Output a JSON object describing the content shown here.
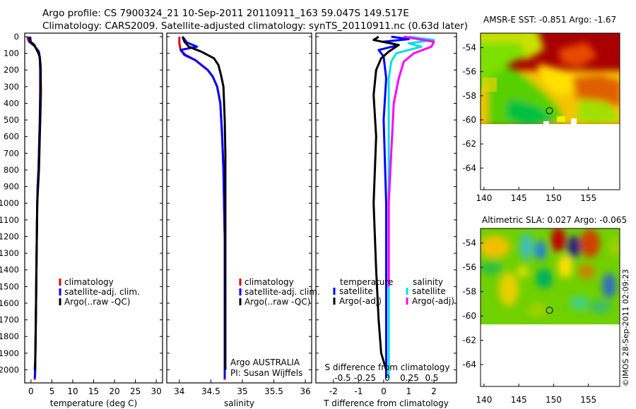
{
  "header": {
    "line1": "Argo profile: CS 7900324_21 10-Sep-2011 20110911_163 59.047S 149.517E",
    "line2": "Climatology: CARS2009. Satellite-adjusted climatology: synTS_20110911.nc (0.63d later)"
  },
  "footer_credit": "©IMOS 28-Sep-2011 02:09:23",
  "colors": {
    "climatology": "#e00000",
    "satellite": "#0000ff",
    "argo": "#000000",
    "sat_sal": "#00e0e0",
    "argo_sal": "#ff00ff"
  },
  "depth_axis": {
    "ticks": [
      0,
      100,
      200,
      300,
      400,
      500,
      600,
      700,
      800,
      900,
      1000,
      1100,
      1200,
      1300,
      1400,
      1500,
      1600,
      1700,
      1800,
      1900,
      2000
    ],
    "range": [
      0,
      2070
    ]
  },
  "chart_data": [
    {
      "type": "line",
      "id": "temperature",
      "xlabel": "temperature (deg C)",
      "xlim": [
        -1.5,
        31.5
      ],
      "xticks": [
        0,
        5,
        10,
        15,
        20,
        25,
        30
      ],
      "xtick_labels": [
        "0",
        "5",
        "10",
        "15",
        "20",
        "25",
        "30"
      ],
      "ylim": [
        2070,
        0
      ],
      "legend": [
        "climatology",
        "satellite-adj. clim.",
        "Argo(..raw -QC)"
      ],
      "series": [
        {
          "name": "climatology",
          "color": "#e00000",
          "x": [
            -0.9,
            -0.5,
            0.8,
            1.8,
            2.1,
            2.3,
            2.4,
            2.3,
            2.2,
            2.0,
            1.9,
            1.8,
            1.6,
            1.5,
            1.4,
            1.3,
            1.2,
            1.1,
            1.0,
            0.9
          ],
          "y": [
            0,
            30,
            55,
            90,
            130,
            200,
            330,
            420,
            500,
            600,
            700,
            800,
            900,
            1000,
            1200,
            1400,
            1600,
            1800,
            2000,
            2060
          ]
        },
        {
          "name": "satellite-adj. clim.",
          "color": "#0000ff",
          "x": [
            -0.6,
            -0.3,
            0.8,
            1.9,
            2.1,
            2.2,
            2.2,
            2.1,
            2.0,
            1.9,
            1.8,
            1.6,
            1.5,
            1.4,
            1.3,
            1.2,
            1.1,
            1.0,
            0.9
          ],
          "y": [
            0,
            30,
            55,
            90,
            130,
            200,
            330,
            500,
            600,
            700,
            800,
            900,
            1000,
            1200,
            1400,
            1600,
            1800,
            2000,
            2050
          ]
        },
        {
          "name": "Argo(..raw -QC)",
          "color": "#000000",
          "x": [
            -0.2,
            -0.1,
            0.8,
            1.6,
            2.1,
            2.3,
            2.3,
            2.2,
            2.1,
            2.0,
            1.9,
            1.7,
            1.5,
            1.4,
            1.3,
            1.2,
            1.1,
            1.0,
            0.9
          ],
          "y": [
            0,
            30,
            50,
            90,
            120,
            180,
            300,
            500,
            600,
            700,
            800,
            900,
            1000,
            1200,
            1400,
            1600,
            1800,
            1950,
            2000
          ]
        }
      ]
    },
    {
      "type": "line",
      "id": "salinity",
      "xlabel": "salinity",
      "xlim": [
        33.8,
        36.1
      ],
      "xticks": [
        34,
        34.5,
        35,
        35.5,
        36
      ],
      "xtick_labels": [
        "34",
        "34.5",
        "35",
        "35.5",
        "36"
      ],
      "ylim": [
        2070,
        0
      ],
      "legend": [
        "climatology",
        "satellite-adj. clim.",
        "Argo(..raw -QC)"
      ],
      "annotation": [
        "Argo AUSTRALIA",
        "PI: Susan Wijffels"
      ],
      "series": [
        {
          "name": "climatology",
          "color": "#e00000",
          "x": [
            34.0,
            34.0,
            34.02,
            34.1,
            34.25,
            34.35,
            34.45,
            34.53,
            34.6,
            34.65,
            34.68,
            34.7,
            34.71,
            34.72,
            34.72,
            34.72,
            34.72
          ],
          "y": [
            0,
            40,
            80,
            110,
            140,
            170,
            200,
            240,
            300,
            400,
            600,
            800,
            1000,
            1200,
            1500,
            1800,
            2060
          ]
        },
        {
          "name": "satellite-adj. clim.",
          "color": "#0000ff",
          "x": [
            34.05,
            34.12,
            34.28,
            34.02,
            34.08,
            34.25,
            34.35,
            34.45,
            34.53,
            34.6,
            34.65,
            34.68,
            34.7,
            34.71,
            34.72,
            34.72,
            34.72
          ],
          "y": [
            0,
            35,
            60,
            80,
            110,
            140,
            170,
            200,
            240,
            300,
            400,
            600,
            800,
            1000,
            1200,
            1600,
            2050
          ]
        },
        {
          "name": "Argo(..raw -QC)",
          "color": "#000000",
          "x": [
            34.05,
            34.08,
            34.15,
            34.35,
            34.55,
            34.62,
            34.66,
            34.7,
            34.72,
            34.73,
            34.73,
            34.73,
            34.73,
            34.73
          ],
          "y": [
            0,
            30,
            60,
            90,
            130,
            170,
            230,
            300,
            500,
            700,
            900,
            1200,
            1600,
            2000
          ]
        }
      ]
    },
    {
      "type": "line",
      "id": "difference",
      "xlabel": "T difference from climatology",
      "xlim": [
        -2.7,
        2.9
      ],
      "xticks": [
        -2,
        -1,
        0,
        1,
        2
      ],
      "xtick_labels": [
        "-2",
        "-1",
        "0",
        "1",
        "2"
      ],
      "secondary_xlabel": "S difference from climatology",
      "secondary_xticks": [
        -0.5,
        -0.25,
        0,
        0.25,
        0.5
      ],
      "secondary_xtick_labels": [
        "-0.5",
        "-0.25",
        "0",
        "0.25",
        "0.5"
      ],
      "ylim": [
        2070,
        0
      ],
      "legend_temperature_title": "temperature",
      "legend_salinity_title": "salinity",
      "legend": [
        "satellite",
        "Argo(-adj)",
        "satellite",
        "Argo(-adj)"
      ],
      "series": [
        {
          "name": "temperature satellite",
          "color": "#0000ff",
          "x": [
            0.3,
            1.0,
            0.0,
            0.6,
            -0.2,
            0.0,
            0.1,
            0.0,
            0.1,
            0.1,
            0.1
          ],
          "y": [
            0,
            15,
            30,
            50,
            80,
            120,
            250,
            500,
            1000,
            1500,
            2050
          ]
        },
        {
          "name": "temperature Argo(-adj)",
          "color": "#000000",
          "x": [
            -0.2,
            -0.4,
            0.6,
            0.2,
            -0.1,
            -0.3,
            -0.4,
            -0.3,
            -0.4,
            -0.3,
            -0.2,
            -0.1,
            0.1
          ],
          "y": [
            0,
            20,
            50,
            90,
            130,
            200,
            350,
            600,
            1000,
            1400,
            1700,
            1900,
            2000
          ]
        },
        {
          "name": "salinity satellite",
          "color": "#00e0e0",
          "x": [
            1.0,
            2.0,
            1.0,
            1.5,
            0.5,
            0.3,
            0.2,
            0.2,
            0.2,
            0.2,
            0.2
          ],
          "y": [
            0,
            20,
            40,
            60,
            100,
            150,
            250,
            500,
            1000,
            1500,
            2050
          ]
        },
        {
          "name": "salinity Argo(-adj)",
          "color": "#ff00ff",
          "x": [
            0.8,
            2.0,
            1.9,
            1.2,
            0.8,
            0.6,
            0.4,
            0.3,
            0.2,
            0.2
          ],
          "y": [
            0,
            30,
            60,
            100,
            150,
            250,
            400,
            700,
            1000,
            1500
          ]
        }
      ]
    },
    {
      "type": "heatmap",
      "id": "sst_map",
      "title": "AMSR-E SST: -0.851  Argo: -1.67",
      "xlim": [
        139.5,
        159.5
      ],
      "ylim": [
        -65.8,
        -52.8
      ],
      "xticks": [
        140,
        145,
        150,
        155
      ],
      "xtick_labels": [
        "140",
        "145",
        "150",
        "155"
      ],
      "yticks": [
        -54,
        -56,
        -58,
        -60,
        -62,
        -64
      ],
      "ytick_labels": [
        "-54",
        "-56",
        "-58",
        "-60",
        "-62",
        "-64"
      ],
      "data_south_limit": -60,
      "argo_position": [
        149.517,
        -59.047
      ]
    },
    {
      "type": "heatmap",
      "id": "sla_map",
      "title": "Altimetric SLA: 0.027  Argo: -0.065",
      "xlim": [
        139.5,
        159.5
      ],
      "ylim": [
        -65.8,
        -52.8
      ],
      "xticks": [
        140,
        145,
        150,
        155
      ],
      "xtick_labels": [
        "140",
        "145",
        "150",
        "155"
      ],
      "yticks": [
        -54,
        -56,
        -58,
        -60,
        -62,
        -64
      ],
      "ytick_labels": [
        "-54",
        "-56",
        "-58",
        "-60",
        "-62",
        "-64"
      ],
      "data_south_limit": -60,
      "argo_position": [
        149.517,
        -59.047
      ]
    }
  ]
}
